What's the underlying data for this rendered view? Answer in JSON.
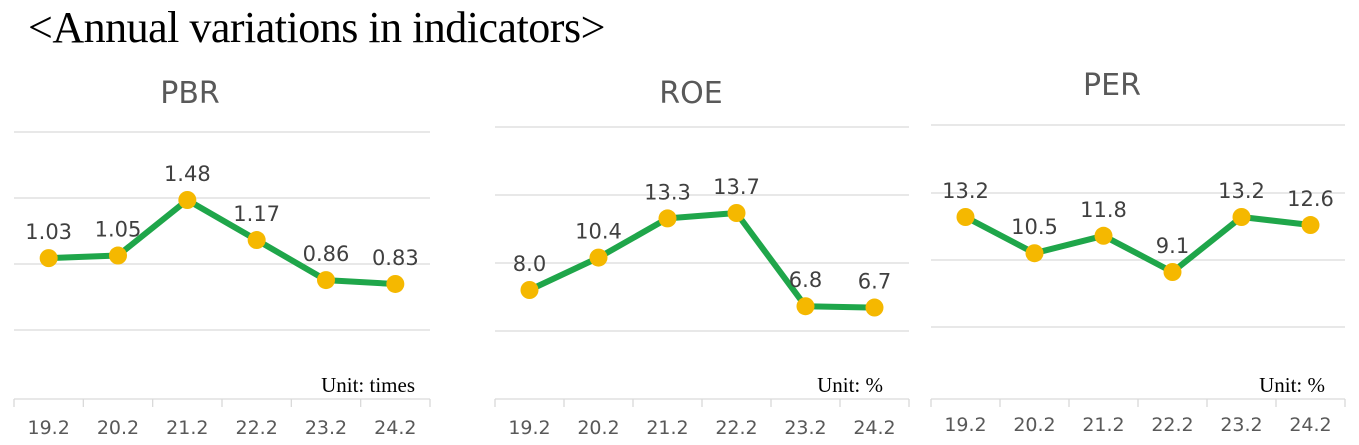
{
  "title": "<Annual variations in indicators>",
  "colors": {
    "line": "#1fa64a",
    "marker": "#f5b800",
    "grid": "#d9d9d9"
  },
  "chart_data": [
    {
      "type": "line",
      "title": "PBR",
      "unit": "Unit: times",
      "categories": [
        "19.2",
        "20.2",
        "21.2",
        "22.2",
        "23.2",
        "24.2"
      ],
      "values": [
        1.03,
        1.05,
        1.48,
        1.17,
        0.86,
        0.83
      ],
      "value_labels": [
        "1.03",
        "1.05",
        "1.48",
        "1.17",
        "0.86",
        "0.83"
      ],
      "grid": true,
      "legend": "none"
    },
    {
      "type": "line",
      "title": "ROE",
      "unit": "Unit: %",
      "categories": [
        "19.2",
        "20.2",
        "21.2",
        "22.2",
        "23.2",
        "24.2"
      ],
      "values": [
        8.0,
        10.4,
        13.3,
        13.7,
        6.8,
        6.7
      ],
      "value_labels": [
        "8.0",
        "10.4",
        "13.3",
        "13.7",
        "6.8",
        "6.7"
      ],
      "grid": true,
      "legend": "none"
    },
    {
      "type": "line",
      "title": "PER",
      "unit": "Unit: %",
      "categories": [
        "19.2",
        "20.2",
        "21.2",
        "22.2",
        "23.2",
        "24.2"
      ],
      "values": [
        13.2,
        10.5,
        11.8,
        9.1,
        13.2,
        12.6
      ],
      "value_labels": [
        "13.2",
        "10.5",
        "11.8",
        "9.1",
        "13.2",
        "12.6"
      ],
      "grid": true,
      "legend": "none"
    }
  ]
}
